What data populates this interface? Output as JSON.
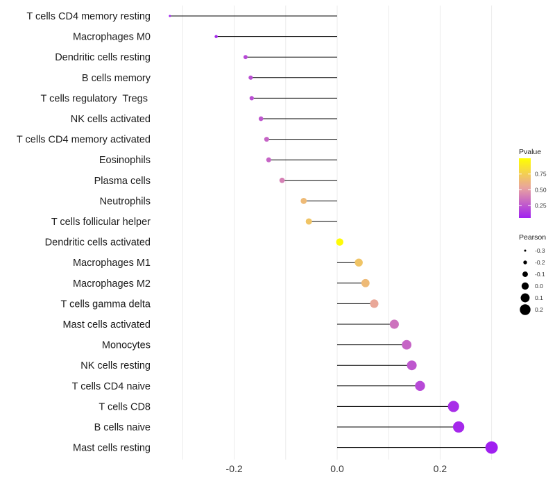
{
  "chart_data": {
    "type": "lollipop",
    "categories": [
      "T cells CD4 memory resting",
      "Macrophages M0",
      "Dendritic cells resting",
      "B cells memory",
      "T cells regulatory  Tregs ",
      "NK cells activated",
      "T cells CD4 memory activated",
      "Eosinophils",
      "Plasma cells",
      "Neutrophils",
      "T cells follicular helper",
      "Dendritic cells activated",
      "Macrophages M1",
      "Macrophages M2",
      "T cells gamma delta",
      "Mast cells activated",
      "Monocytes",
      "NK cells resting",
      "T cells CD4 naive",
      "T cells CD8",
      "B cells naive",
      "Mast cells resting"
    ],
    "values": [
      -0.325,
      -0.235,
      -0.178,
      -0.168,
      -0.166,
      -0.148,
      -0.137,
      -0.133,
      -0.107,
      -0.065,
      -0.055,
      0.005,
      0.042,
      0.055,
      0.072,
      0.111,
      0.135,
      0.145,
      0.161,
      0.226,
      0.236,
      0.3
    ],
    "pvalues": [
      0.05,
      0.08,
      0.2,
      0.22,
      0.22,
      0.25,
      0.3,
      0.3,
      0.4,
      0.65,
      0.7,
      0.98,
      0.7,
      0.65,
      0.55,
      0.35,
      0.3,
      0.25,
      0.2,
      0.1,
      0.08,
      0.05
    ],
    "xlim": [
      -0.3,
      0.3
    ],
    "x_ticks": [
      -0.2,
      0.0,
      0.2
    ],
    "x_tick_labels": [
      "-0.2",
      "0.0",
      "0.2"
    ],
    "grid": true,
    "title": "",
    "xlabel": "",
    "ylabel": "",
    "color_legend": {
      "title": "Pvalue",
      "ticks": [
        0.25,
        0.5,
        0.75
      ],
      "tick_labels": [
        "0.25",
        "0.50",
        "0.75"
      ],
      "range": [
        0.05,
        1.0
      ],
      "low_color": "#a020f0",
      "mid_color": "#e8a2a0",
      "high_color": "#ffff00"
    },
    "size_legend": {
      "title": "Pearson",
      "values": [
        -0.3,
        -0.2,
        -0.1,
        0.0,
        0.1,
        0.2
      ],
      "labels": [
        "-0.3",
        "-0.2",
        "-0.1",
        "0.0",
        "0.1",
        "0.2"
      ]
    },
    "legend_position": "right"
  }
}
